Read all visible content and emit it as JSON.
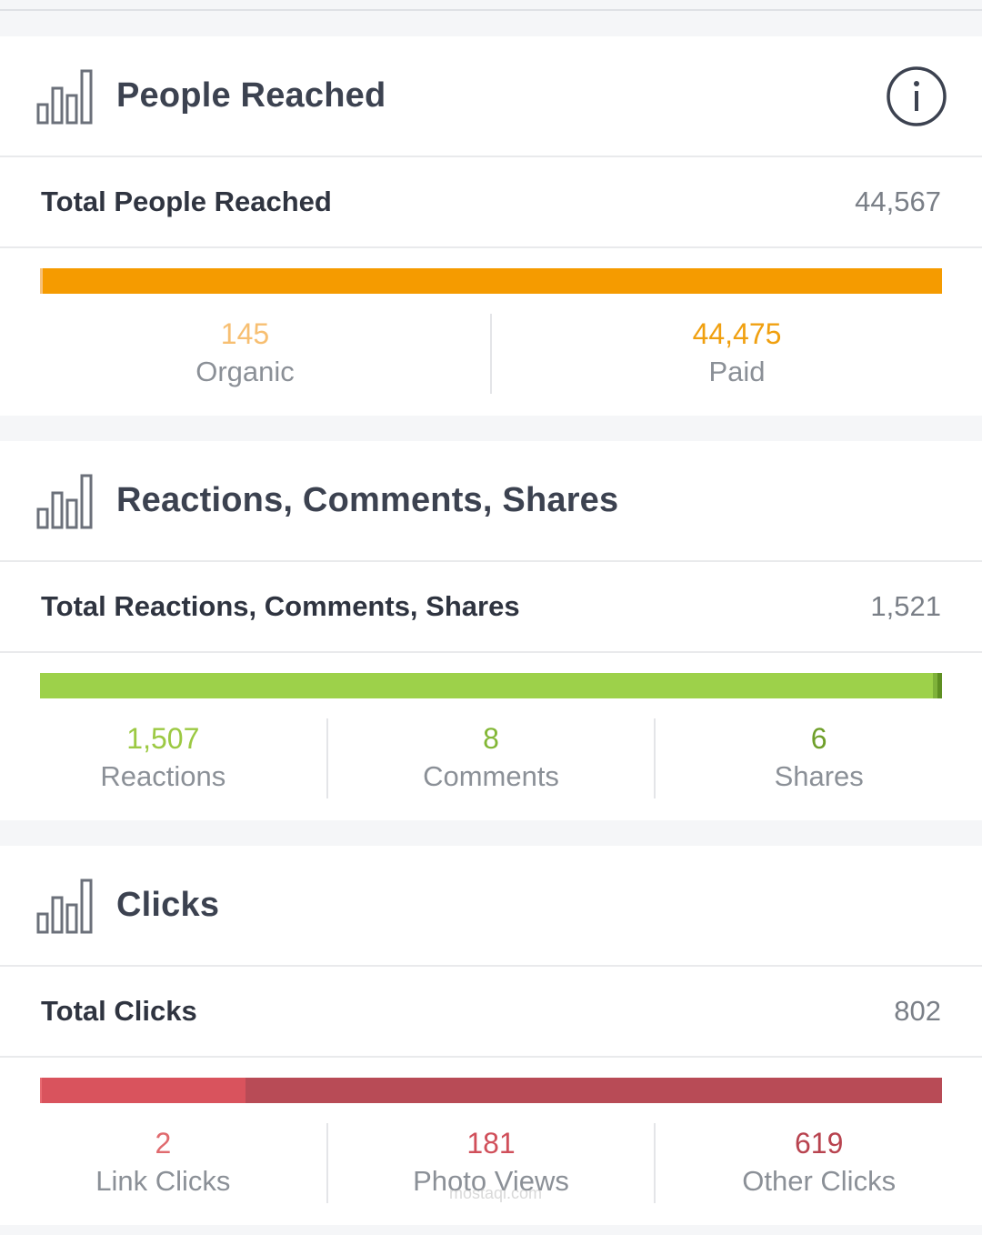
{
  "sections": [
    {
      "title": "People Reached",
      "icon": "bar-chart-icon",
      "has_info": true,
      "total_label": "Total People Reached",
      "total_value": "44,567",
      "bar": [
        {
          "fraction": 0.003,
          "color": "#f7c27a"
        },
        {
          "fraction": 0.997,
          "color": "#f59b00"
        }
      ],
      "stats": [
        {
          "value": "145",
          "label": "Organic",
          "color": "#f7bf72"
        },
        {
          "value": "44,475",
          "label": "Paid",
          "color": "#f0a010"
        }
      ]
    },
    {
      "title": "Reactions, Comments, Shares",
      "icon": "bar-chart-icon",
      "has_info": false,
      "total_label": "Total Reactions, Comments, Shares",
      "total_value": "1,521",
      "bar": [
        {
          "fraction": 0.99,
          "color": "#9dd14a"
        },
        {
          "fraction": 0.005,
          "color": "#7fb23a"
        },
        {
          "fraction": 0.005,
          "color": "#5e8f22"
        }
      ],
      "stats": [
        {
          "value": "1,507",
          "label": "Reactions",
          "color": "#9cc943"
        },
        {
          "value": "8",
          "label": "Comments",
          "color": "#83b736"
        },
        {
          "value": "6",
          "label": "Shares",
          "color": "#6f9f2a"
        }
      ]
    },
    {
      "title": "Clicks",
      "icon": "bar-chart-icon",
      "has_info": false,
      "total_label": "Total Clicks",
      "total_value": "802",
      "bar": [
        {
          "fraction": 0.0025,
          "color": "#e86a72"
        },
        {
          "fraction": 0.2257,
          "color": "#d9535d"
        },
        {
          "fraction": 0.7718,
          "color": "#b84b56"
        }
      ],
      "stats": [
        {
          "value": "2",
          "label": "Link Clicks",
          "color": "#e06a6e"
        },
        {
          "value": "181",
          "label": "Photo Views",
          "color": "#d04f5a"
        },
        {
          "value": "619",
          "label": "Other Clicks",
          "color": "#b8434f"
        }
      ]
    }
  ],
  "watermark": {
    "text": "mostaql.com"
  }
}
